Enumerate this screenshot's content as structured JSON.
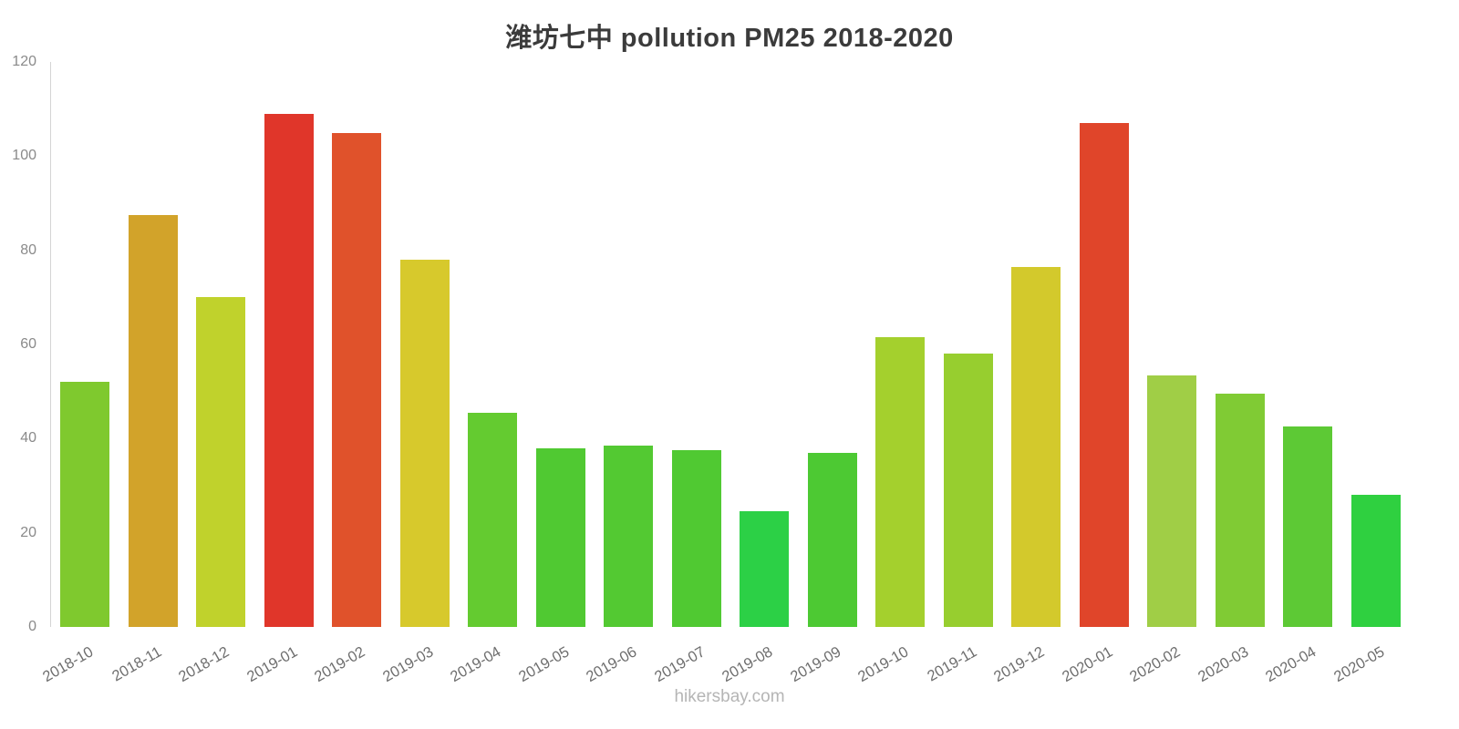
{
  "page": {
    "title": "潍坊七中 pollution PM25 2018-2020",
    "watermark": "hikersbay.com"
  },
  "chart_data": {
    "type": "bar",
    "title": "潍坊七中 pollution PM25 2018-2020",
    "xlabel": "",
    "ylabel": "",
    "ylim": [
      0,
      120
    ],
    "yticks": [
      0,
      20,
      40,
      60,
      80,
      100,
      120
    ],
    "grid": false,
    "legend_position": "none",
    "categories": [
      "2018-10",
      "2018-11",
      "2018-12",
      "2019-01",
      "2019-02",
      "2019-03",
      "2019-04",
      "2019-05",
      "2019-06",
      "2019-07",
      "2019-08",
      "2019-09",
      "2019-10",
      "2019-11",
      "2019-12",
      "2020-01",
      "2020-02",
      "2020-03",
      "2020-04",
      "2020-05"
    ],
    "values": [
      52,
      87.5,
      70,
      109,
      105,
      78,
      45.5,
      38,
      38.5,
      37.5,
      24.5,
      37,
      61.5,
      58,
      76.5,
      107,
      53.5,
      49.5,
      42.5,
      28
    ],
    "bar_colors": [
      "#7FC92E",
      "#D2A32A",
      "#C0D22C",
      "#E0362A",
      "#E0522B",
      "#D7C92C",
      "#64CB30",
      "#50C932",
      "#53C932",
      "#50C932",
      "#2CD046",
      "#4DC933",
      "#A4D02D",
      "#97CE2F",
      "#D3C92C",
      "#E0452A",
      "#A0CE46",
      "#80CB34",
      "#5DC935",
      "#2FD040"
    ],
    "axis_color": "#d4d4d4"
  }
}
